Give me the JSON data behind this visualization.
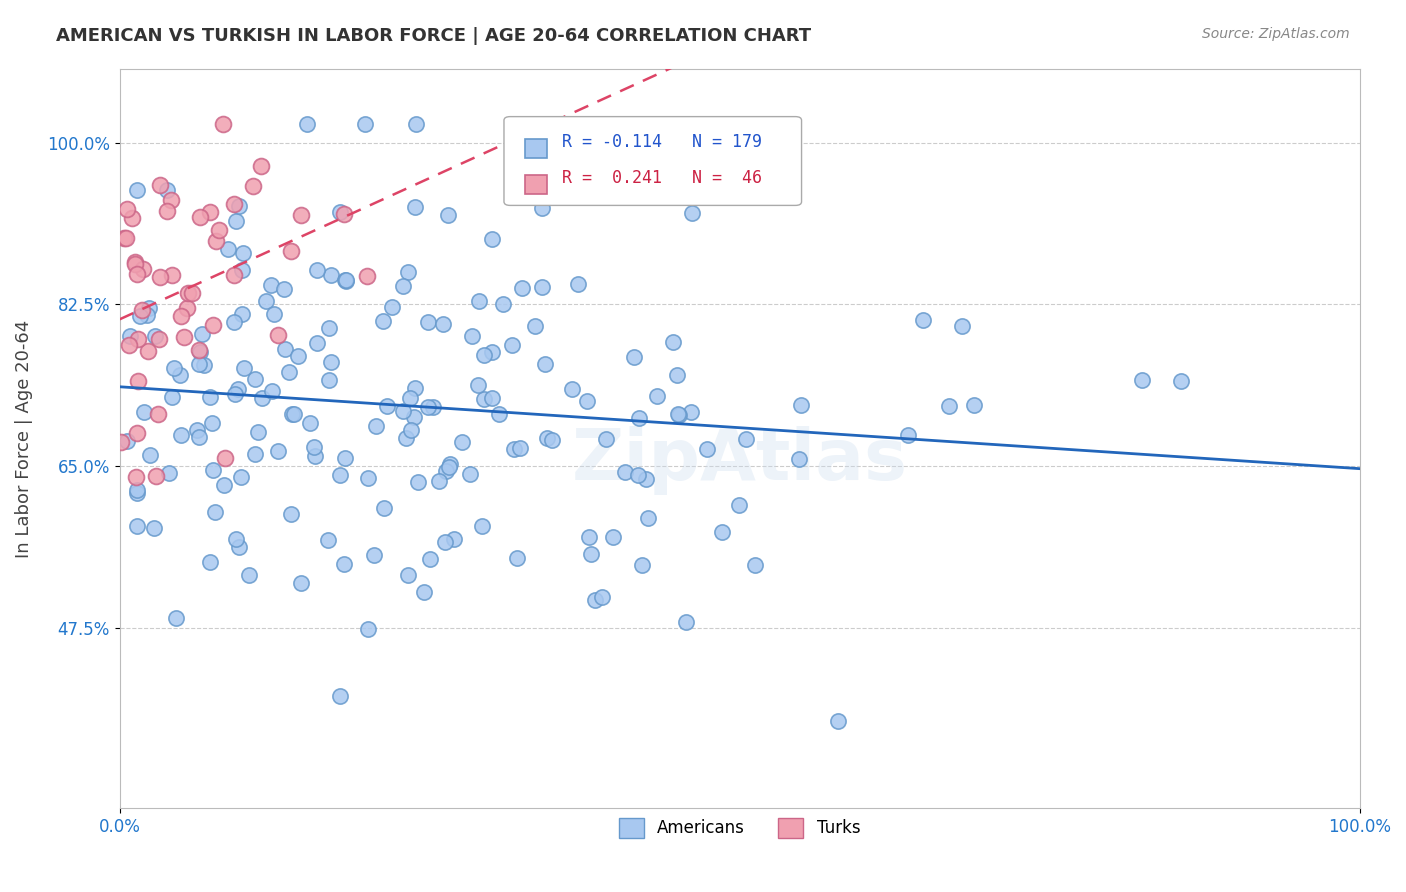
{
  "title": "AMERICAN VS TURKISH IN LABOR FORCE | AGE 20-64 CORRELATION CHART",
  "source": "Source: ZipAtlas.com",
  "xlabel": "",
  "ylabel": "In Labor Force | Age 20-64",
  "xlim": [
    0.0,
    1.0
  ],
  "ylim": [
    0.28,
    1.08
  ],
  "yticks": [
    0.475,
    0.65,
    0.825,
    1.0
  ],
  "ytick_labels": [
    "47.5%",
    "65.0%",
    "82.5%",
    "100.0%"
  ],
  "xtick_labels": [
    "0.0%",
    "100.0%"
  ],
  "xticks": [
    0.0,
    1.0
  ],
  "american_color": "#a8c8f0",
  "turkish_color": "#f0a0b0",
  "american_edge": "#6699cc",
  "turkish_edge": "#cc6688",
  "american_R": -0.114,
  "american_N": 179,
  "turkish_R": 0.241,
  "turkish_N": 46,
  "legend_label_american": "Americans",
  "legend_label_turkish": "Turks",
  "watermark": "ZipAtlas",
  "background_color": "#ffffff",
  "grid_color": "#cccccc"
}
